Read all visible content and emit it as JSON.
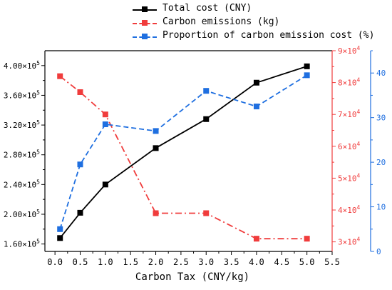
{
  "chart_data": {
    "type": "line",
    "xlabel": "Carbon Tax (CNY/kg)",
    "x_ticks": [
      "0.0",
      "0.5",
      "1.0",
      "1.5",
      "2.0",
      "2.5",
      "3.0",
      "3.5",
      "4.0",
      "4.5",
      "5.0",
      "5.5"
    ],
    "xlim": [
      -0.2,
      5.5
    ],
    "left_axis": {
      "ylim": [
        150000,
        420000
      ],
      "ticks": [
        160000,
        200000,
        240000,
        280000,
        320000,
        360000,
        400000
      ],
      "tick_mantissas": [
        "1.60",
        "2.00",
        "2.40",
        "2.80",
        "3.20",
        "3.60",
        "4.00"
      ],
      "tick_times": "×10",
      "tick_exponent": "5",
      "color": "#000000"
    },
    "right_axis_red": {
      "ylim": [
        27000,
        90000
      ],
      "ticks": [
        30000,
        40000,
        50000,
        60000,
        70000,
        80000,
        90000
      ],
      "tick_mantissas": [
        "3",
        "4",
        "5",
        "6",
        "7",
        "8",
        "9"
      ],
      "tick_times": "×10",
      "tick_exponent": "4",
      "color": "#f03c3c"
    },
    "right_axis_blue": {
      "ylim": [
        0,
        45
      ],
      "ticks": [
        0,
        10,
        20,
        30,
        40
      ],
      "tick_labels": [
        "0",
        "10",
        "20",
        "30",
        "40"
      ],
      "color": "#1f6fe0"
    },
    "series": [
      {
        "name": "Total cost (CNY)",
        "axis": "left",
        "color": "#000000",
        "dash": "solid",
        "x": [
          0.1,
          0.5,
          1.0,
          2.0,
          3.0,
          4.0,
          5.0
        ],
        "values": [
          168000,
          202000,
          240000,
          289000,
          328000,
          377000,
          399000
        ]
      },
      {
        "name": "Carbon emissions (kg)",
        "axis": "right_red",
        "color": "#f03c3c",
        "dash": "dashdot",
        "x": [
          0.1,
          0.5,
          1.0,
          2.0,
          3.0,
          4.0,
          5.0
        ],
        "values": [
          82000,
          77000,
          70000,
          39000,
          39000,
          31000,
          31000
        ]
      },
      {
        "name": "Proportion of carbon emission cost (%)",
        "axis": "right_blue",
        "color": "#1f6fe0",
        "dash": "dash",
        "x": [
          0.1,
          0.5,
          1.0,
          2.0,
          3.0,
          4.0,
          5.0
        ],
        "values": [
          5,
          19.5,
          28.5,
          27,
          36,
          32.5,
          39.5
        ]
      }
    ]
  }
}
